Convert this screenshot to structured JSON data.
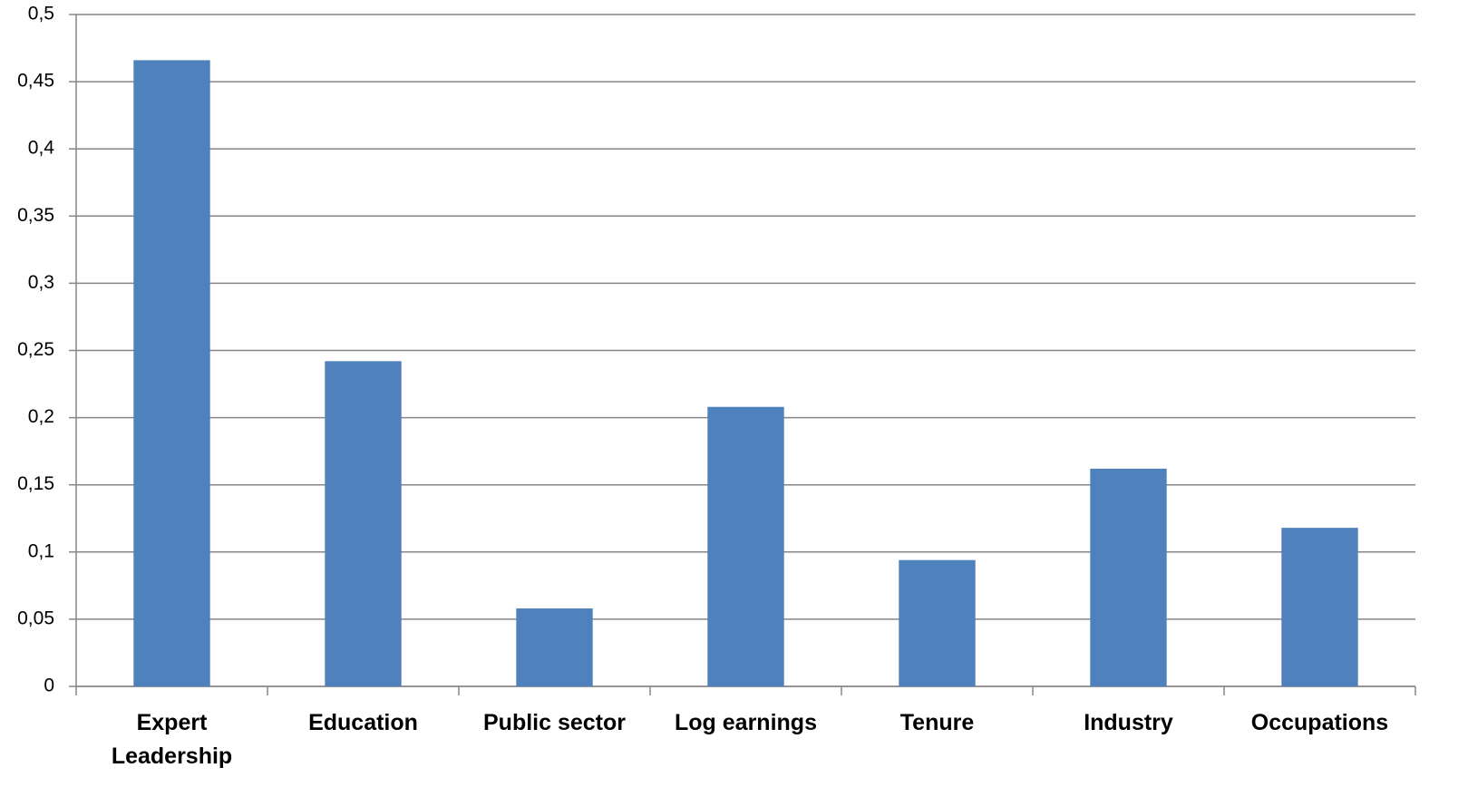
{
  "chart_data": {
    "type": "bar",
    "categories": [
      "Expert Leadership",
      "Education",
      "Public sector",
      "Log earnings",
      "Tenure",
      "Industry",
      "Occupations"
    ],
    "values": [
      0.466,
      0.242,
      0.058,
      0.208,
      0.094,
      0.162,
      0.118
    ],
    "color": "#4f81bd",
    "ylim": [
      0,
      0.5
    ],
    "yticks": [
      0,
      {
        "value": 0.05,
        "label": "0,05"
      },
      {
        "value": 0.1,
        "label": "0,1"
      },
      {
        "value": 0.15,
        "label": "0,15"
      },
      {
        "value": 0.2,
        "label": "0,2"
      },
      {
        "value": 0.25,
        "label": "0,25"
      },
      {
        "value": 0.3,
        "label": "0,3"
      },
      {
        "value": 0.35,
        "label": "0,35"
      },
      {
        "value": 0.4,
        "label": "0,4"
      },
      {
        "value": 0.45,
        "label": "0,45"
      },
      {
        "value": 0.5,
        "label": "0,5"
      }
    ],
    "grid": true
  }
}
